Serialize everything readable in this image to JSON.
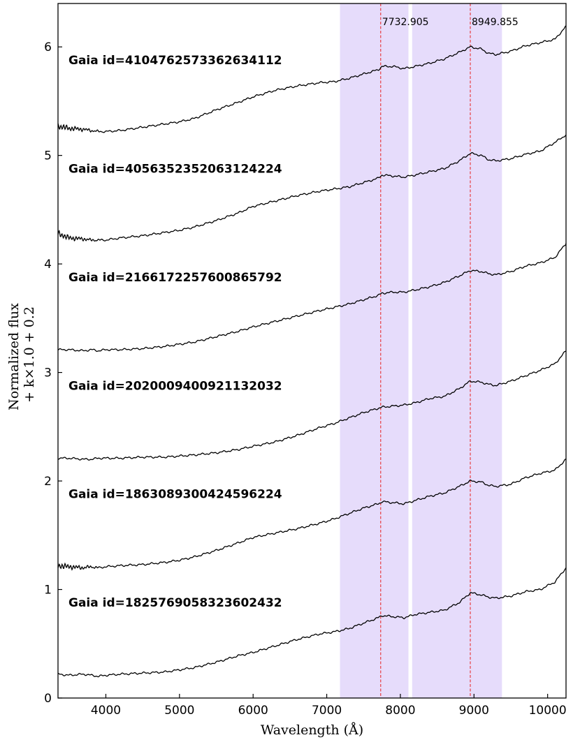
{
  "chart_data": {
    "type": "line",
    "title": "",
    "xlabel": "Wavelength (Å)",
    "ylabel_lines": [
      "Normalized flux",
      "+ k×1.0 + 0.2"
    ],
    "xlim": [
      3350,
      10250
    ],
    "ylim": [
      0,
      6.4
    ],
    "x_ticks": [
      4000,
      5000,
      6000,
      7000,
      8000,
      9000,
      10000
    ],
    "y_ticks": [
      0,
      1,
      2,
      3,
      4,
      5,
      6
    ],
    "grid": false,
    "legend": "none",
    "shaded_bands": [
      {
        "x0": 7180,
        "x1": 8110,
        "color": "#e6dcfb"
      },
      {
        "x0": 8160,
        "x1": 9380,
        "color": "#e6dcfb"
      }
    ],
    "vertical_lines": [
      {
        "x": 7732.905,
        "label": "7732.905",
        "color": "#e8201e"
      },
      {
        "x": 8949.855,
        "label": "8949.855",
        "color": "#e8201e"
      }
    ],
    "line_color": "#000000",
    "series": [
      {
        "name": "Gaia id=1825769058323602432",
        "label_y": 0.88,
        "noisy_blue": false,
        "x": [
          3350,
          3500,
          3700,
          3800,
          3900,
          4000,
          4200,
          4500,
          4800,
          5000,
          5200,
          5500,
          5800,
          6000,
          6300,
          6600,
          6900,
          7100,
          7300,
          7500,
          7700,
          7750,
          7900,
          8050,
          8200,
          8400,
          8600,
          8800,
          8950,
          9100,
          9200,
          9300,
          9500,
          9700,
          9900,
          10100,
          10250
        ],
        "y": [
          0.22,
          0.21,
          0.22,
          0.21,
          0.2,
          0.21,
          0.22,
          0.23,
          0.24,
          0.26,
          0.28,
          0.33,
          0.39,
          0.42,
          0.48,
          0.54,
          0.59,
          0.61,
          0.64,
          0.69,
          0.74,
          0.76,
          0.75,
          0.74,
          0.77,
          0.79,
          0.81,
          0.88,
          0.97,
          0.95,
          0.93,
          0.92,
          0.94,
          0.98,
          1.0,
          1.07,
          1.2
        ]
      },
      {
        "name": "Gaia id=1863089300424596224",
        "label_y": 1.88,
        "noisy_blue": true,
        "x": [
          3350,
          3500,
          3700,
          3800,
          3900,
          4000,
          4200,
          4500,
          4800,
          5000,
          5200,
          5500,
          5800,
          6000,
          6300,
          6600,
          6900,
          7100,
          7300,
          7500,
          7700,
          7750,
          7900,
          8050,
          8200,
          8400,
          8600,
          8800,
          8950,
          9100,
          9200,
          9300,
          9500,
          9700,
          9900,
          10100,
          10250
        ],
        "y": [
          1.22,
          1.21,
          1.2,
          1.21,
          1.2,
          1.21,
          1.22,
          1.23,
          1.25,
          1.27,
          1.3,
          1.36,
          1.43,
          1.48,
          1.52,
          1.56,
          1.61,
          1.65,
          1.7,
          1.75,
          1.79,
          1.81,
          1.8,
          1.79,
          1.82,
          1.86,
          1.89,
          1.95,
          2.0,
          1.99,
          1.96,
          1.95,
          1.97,
          2.03,
          2.07,
          2.1,
          2.2
        ]
      },
      {
        "name": "Gaia id=2020009400921132032",
        "label_y": 2.88,
        "noisy_blue": false,
        "x": [
          3350,
          3500,
          3700,
          3800,
          3900,
          4000,
          4200,
          4500,
          4800,
          5000,
          5200,
          5500,
          5800,
          6000,
          6300,
          6600,
          6900,
          7100,
          7300,
          7500,
          7700,
          7750,
          7900,
          8050,
          8200,
          8400,
          8600,
          8800,
          8950,
          9100,
          9200,
          9300,
          9500,
          9700,
          9900,
          10100,
          10250
        ],
        "y": [
          2.21,
          2.21,
          2.2,
          2.2,
          2.21,
          2.21,
          2.21,
          2.22,
          2.22,
          2.23,
          2.24,
          2.26,
          2.29,
          2.32,
          2.36,
          2.42,
          2.49,
          2.53,
          2.58,
          2.63,
          2.67,
          2.68,
          2.69,
          2.7,
          2.72,
          2.76,
          2.78,
          2.85,
          2.92,
          2.91,
          2.89,
          2.88,
          2.92,
          2.97,
          3.02,
          3.08,
          3.2
        ]
      },
      {
        "name": "Gaia id=2166172257600865792",
        "label_y": 3.88,
        "noisy_blue": false,
        "x": [
          3350,
          3500,
          3700,
          3800,
          3900,
          4000,
          4200,
          4500,
          4800,
          5000,
          5200,
          5500,
          5800,
          6000,
          6300,
          6600,
          6900,
          7100,
          7300,
          7500,
          7700,
          7750,
          7900,
          8050,
          8200,
          8400,
          8600,
          8800,
          8950,
          9100,
          9200,
          9300,
          9500,
          9700,
          9900,
          10100,
          10250
        ],
        "y": [
          3.21,
          3.21,
          3.2,
          3.21,
          3.2,
          3.21,
          3.21,
          3.22,
          3.24,
          3.26,
          3.28,
          3.33,
          3.38,
          3.42,
          3.47,
          3.52,
          3.57,
          3.6,
          3.63,
          3.67,
          3.71,
          3.73,
          3.74,
          3.74,
          3.76,
          3.79,
          3.83,
          3.89,
          3.94,
          3.93,
          3.91,
          3.9,
          3.93,
          3.98,
          4.01,
          4.06,
          4.19
        ]
      },
      {
        "name": "Gaia id=4056352352063124224",
        "label_y": 4.88,
        "noisy_blue": true,
        "x": [
          3350,
          3500,
          3700,
          3800,
          3900,
          4000,
          4200,
          4500,
          4800,
          5000,
          5200,
          5500,
          5800,
          6000,
          6300,
          6600,
          6900,
          7100,
          7300,
          7500,
          7700,
          7750,
          7900,
          8050,
          8200,
          8400,
          8600,
          8800,
          8950,
          9100,
          9200,
          9300,
          9500,
          9700,
          9900,
          10100,
          10250
        ],
        "y": [
          4.28,
          4.24,
          4.23,
          4.22,
          4.22,
          4.22,
          4.24,
          4.26,
          4.29,
          4.31,
          4.34,
          4.4,
          4.47,
          4.53,
          4.58,
          4.63,
          4.67,
          4.69,
          4.71,
          4.75,
          4.79,
          4.82,
          4.81,
          4.8,
          4.82,
          4.85,
          4.88,
          4.95,
          5.02,
          5.0,
          4.96,
          4.95,
          4.97,
          5.01,
          5.04,
          5.12,
          5.19
        ]
      },
      {
        "name": "Gaia id=4104762573362634112",
        "label_y": 5.88,
        "noisy_blue": true,
        "x": [
          3350,
          3500,
          3700,
          3800,
          3900,
          4000,
          4200,
          4500,
          4800,
          5000,
          5200,
          5500,
          5800,
          6000,
          6300,
          6600,
          6900,
          7100,
          7300,
          7500,
          7700,
          7750,
          7900,
          8050,
          8200,
          8400,
          8600,
          8800,
          8950,
          9100,
          9200,
          9300,
          9500,
          9700,
          9900,
          10100,
          10250
        ],
        "y": [
          5.27,
          5.25,
          5.24,
          5.23,
          5.22,
          5.22,
          5.23,
          5.26,
          5.29,
          5.31,
          5.34,
          5.42,
          5.49,
          5.54,
          5.6,
          5.64,
          5.67,
          5.68,
          5.71,
          5.75,
          5.79,
          5.82,
          5.82,
          5.8,
          5.82,
          5.85,
          5.89,
          5.95,
          6.0,
          5.98,
          5.94,
          5.93,
          5.96,
          6.01,
          6.04,
          6.07,
          6.19
        ]
      }
    ]
  }
}
